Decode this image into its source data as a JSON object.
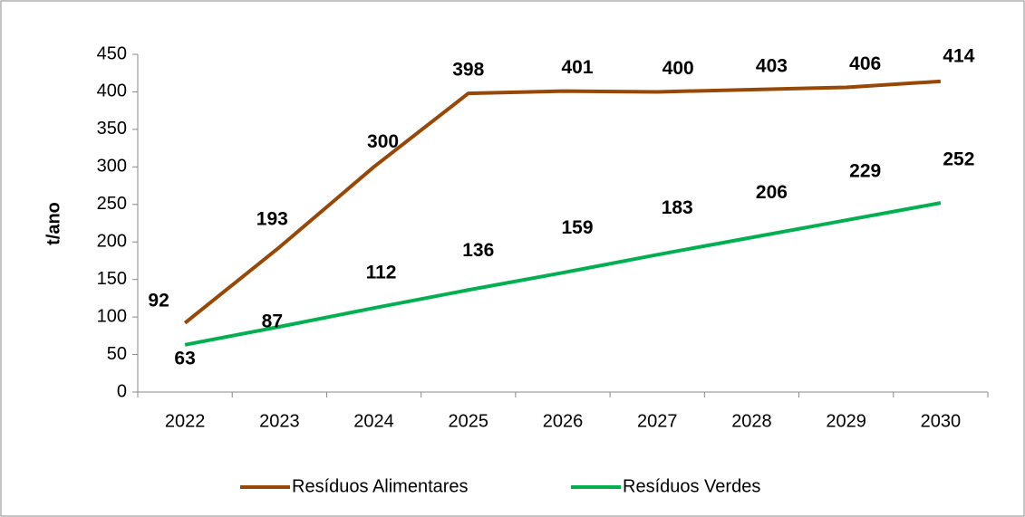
{
  "chart_data": {
    "type": "line",
    "y_label": "t/ano",
    "categories": [
      "2022",
      "2023",
      "2024",
      "2025",
      "2026",
      "2027",
      "2028",
      "2029",
      "2030"
    ],
    "series": [
      {
        "name": "Resíduos Alimentares",
        "color": "#974806",
        "values": [
          92,
          193,
          300,
          398,
          401,
          400,
          403,
          406,
          414
        ]
      },
      {
        "name": "Resíduos Verdes",
        "color": "#00b050",
        "values": [
          63,
          87,
          112,
          136,
          159,
          183,
          206,
          229,
          252
        ]
      }
    ],
    "ylim": [
      0,
      450
    ],
    "yticks": [
      0,
      50,
      100,
      150,
      200,
      250,
      300,
      350,
      400,
      450
    ],
    "legend": "bottom"
  }
}
